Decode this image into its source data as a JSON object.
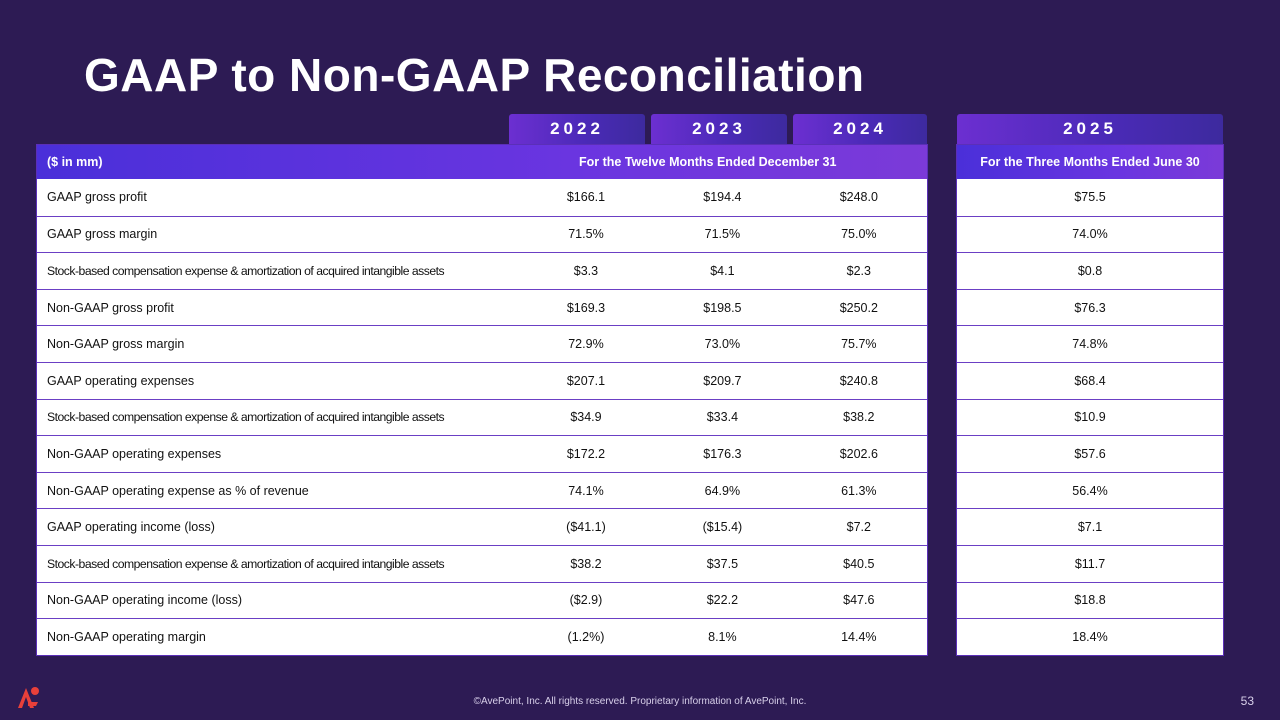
{
  "title": "GAAP to Non-GAAP Reconciliation",
  "years": {
    "y2022": "2022",
    "y2023": "2023",
    "y2024": "2024",
    "y2025": "2025"
  },
  "header": {
    "units": "($ in mm)",
    "twelve_months": "For the Twelve Months Ended December 31",
    "three_months": "For the Three Months Ended June 30"
  },
  "rows": [
    {
      "label": "GAAP gross profit",
      "v2022": "$166.1",
      "v2023": "$194.4",
      "v2024": "$248.0",
      "v2025": "$75.5"
    },
    {
      "label": "GAAP gross margin",
      "v2022": "71.5%",
      "v2023": "71.5%",
      "v2024": "75.0%",
      "v2025": "74.0%"
    },
    {
      "label": "Stock-based compensation expense & amortization of acquired intangible assets",
      "v2022": "$3.3",
      "v2023": "$4.1",
      "v2024": "$2.3",
      "v2025": "$0.8"
    },
    {
      "label": "Non-GAAP gross profit",
      "v2022": "$169.3",
      "v2023": "$198.5",
      "v2024": "$250.2",
      "v2025": "$76.3"
    },
    {
      "label": "Non-GAAP gross margin",
      "v2022": "72.9%",
      "v2023": "73.0%",
      "v2024": "75.7%",
      "v2025": "74.8%"
    },
    {
      "label": "GAAP operating expenses",
      "v2022": "$207.1",
      "v2023": "$209.7",
      "v2024": "$240.8",
      "v2025": "$68.4"
    },
    {
      "label": "Stock-based compensation expense & amortization of acquired intangible assets",
      "v2022": "$34.9",
      "v2023": "$33.4",
      "v2024": "$38.2",
      "v2025": "$10.9"
    },
    {
      "label": "Non-GAAP operating expenses",
      "v2022": "$172.2",
      "v2023": "$176.3",
      "v2024": "$202.6",
      "v2025": "$57.6"
    },
    {
      "label": "Non-GAAP operating expense as % of revenue",
      "v2022": "74.1%",
      "v2023": "64.9%",
      "v2024": "61.3%",
      "v2025": "56.4%"
    },
    {
      "label": "GAAP operating income (loss)",
      "v2022": "($41.1)",
      "v2023": "($15.4)",
      "v2024": "$7.2",
      "v2025": "$7.1"
    },
    {
      "label": "Stock-based compensation expense & amortization of acquired intangible assets",
      "v2022": "$38.2",
      "v2023": "$37.5",
      "v2024": "$40.5",
      "v2025": "$11.7"
    },
    {
      "label": "Non-GAAP operating income (loss)",
      "v2022": "($2.9)",
      "v2023": "$22.2",
      "v2024": "$47.6",
      "v2025": "$18.8"
    },
    {
      "label": "Non-GAAP operating margin",
      "v2022": "(1.2%)",
      "v2023": "8.1%",
      "v2024": "14.4%",
      "v2025": "18.4%"
    }
  ],
  "footer": "©AvePoint, Inc. All rights reserved. Proprietary information of AvePoint, Inc.",
  "page_number": "53",
  "colors": {
    "background": "#2d1b54",
    "accent": "#6a35e0",
    "logo": "#e8403a"
  }
}
